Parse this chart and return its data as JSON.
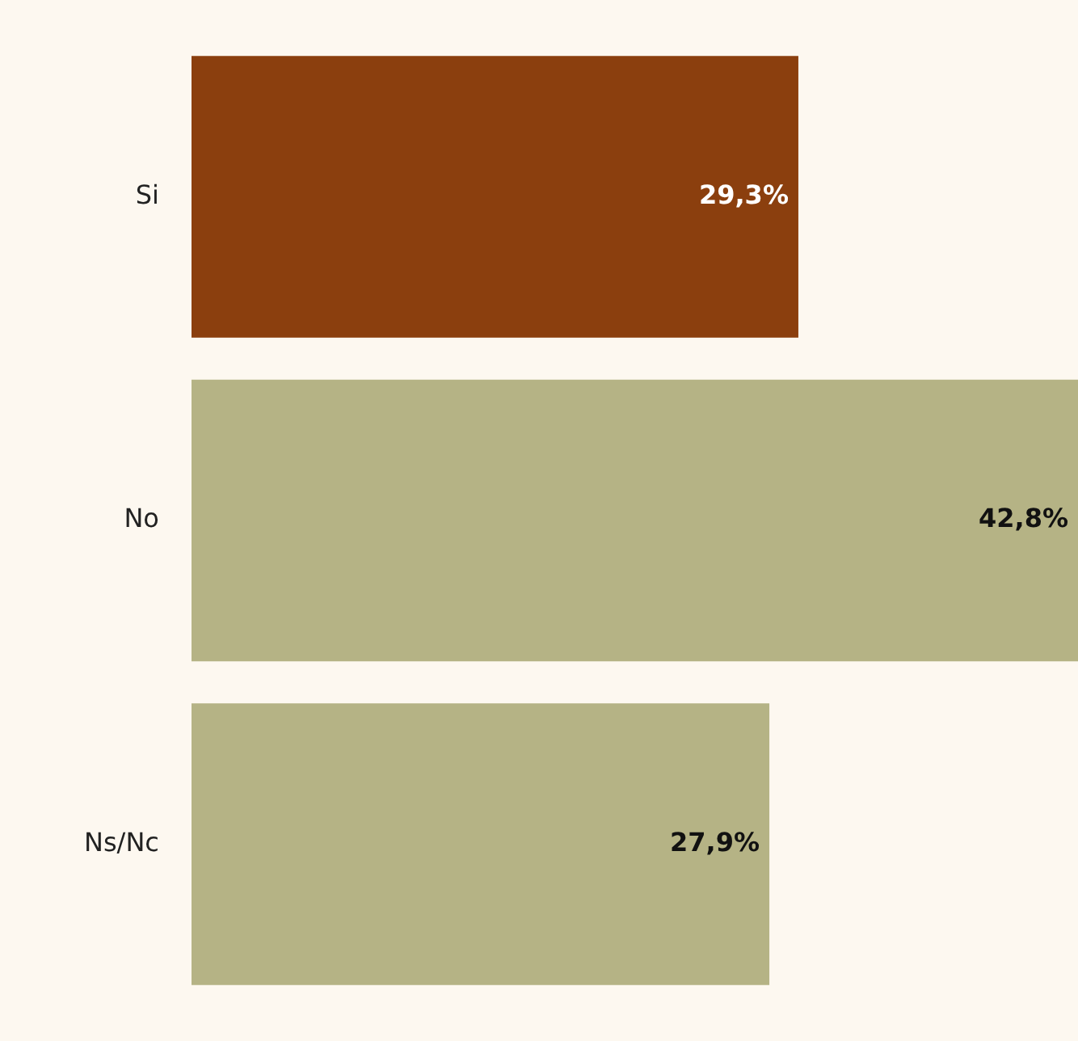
{
  "chart_data": {
    "type": "bar",
    "orientation": "horizontal",
    "categories": [
      "Si",
      "No",
      "Ns/Nc"
    ],
    "values": [
      29.3,
      42.8,
      27.9
    ],
    "colors": [
      "#8b3f0e",
      "#b5b385",
      "#b5b385"
    ],
    "value_labels": [
      "29,3%",
      "42,8%",
      "27,9%"
    ]
  }
}
